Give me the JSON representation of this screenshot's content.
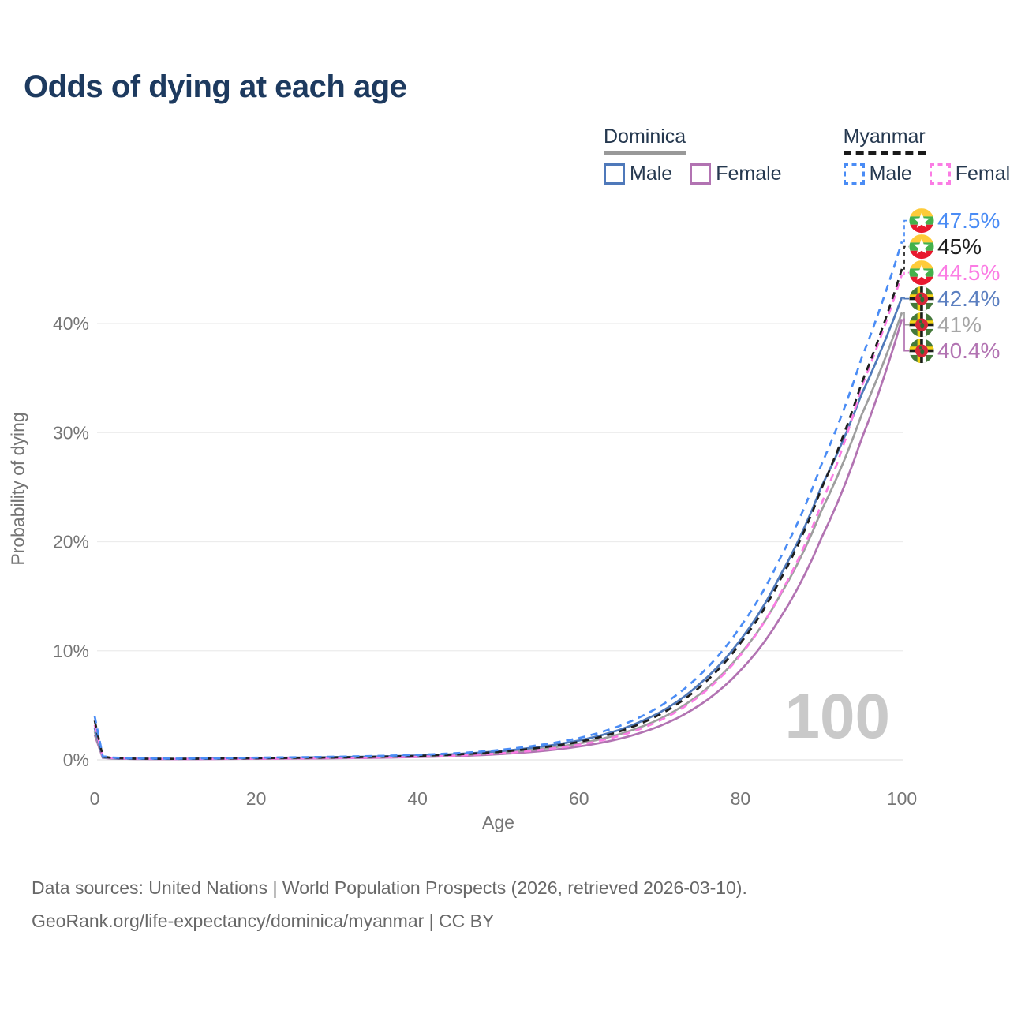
{
  "title": "Odds of dying at each age",
  "watermark": "100",
  "legend": {
    "groups": [
      {
        "country": "Dominica",
        "underline_color": "#999999",
        "underline_style": "solid",
        "items": [
          {
            "label": "Male",
            "color": "#4f79ba",
            "dash": false
          },
          {
            "label": "Female",
            "color": "#b273b2",
            "dash": false
          }
        ]
      },
      {
        "country": "Myanmar",
        "underline_color": "#1a1a1a",
        "underline_style": "dashed",
        "items": [
          {
            "label": "Male",
            "color": "#4a8cf5",
            "dash": true
          },
          {
            "label": "Female",
            "color": "#fb7ce4",
            "dash": true
          }
        ]
      }
    ]
  },
  "footer": {
    "line1": "Data sources: United Nations | World Population Prospects (2026, retrieved 2026-03-10).",
    "line2": "GeoRank.org/life-expectancy/dominica/myanmar | CC BY"
  },
  "chart_data": {
    "type": "line",
    "title": "Odds of dying at each age",
    "xlabel": "Age",
    "ylabel": "Probability of dying",
    "xlim": [
      0,
      100
    ],
    "ylim": [
      0,
      48
    ],
    "grid": "horizontal",
    "legend_position": "top-right",
    "xticks": [
      {
        "value": 0,
        "label": "0"
      },
      {
        "value": 20,
        "label": "20"
      },
      {
        "value": 40,
        "label": "40"
      },
      {
        "value": 60,
        "label": "60"
      },
      {
        "value": 80,
        "label": "80"
      },
      {
        "value": 100,
        "label": "100"
      }
    ],
    "yticks": [
      {
        "value": 0,
        "label": "0%"
      },
      {
        "value": 10,
        "label": "10%"
      },
      {
        "value": 20,
        "label": "20%"
      },
      {
        "value": 30,
        "label": "30%"
      },
      {
        "value": 40,
        "label": "40%"
      }
    ],
    "ages": [
      0,
      1,
      2,
      5,
      10,
      15,
      20,
      25,
      30,
      35,
      40,
      45,
      50,
      55,
      60,
      65,
      70,
      75,
      80,
      85,
      90,
      95,
      100
    ],
    "series": [
      {
        "name": "Dominica Female",
        "country": "Dominica",
        "sex": "Female",
        "color": "#b273b2",
        "label_color": "#b273b2",
        "dash": false,
        "end_label": "40.4%",
        "values": [
          2.3,
          0.19,
          0.12,
          0.08,
          0.07,
          0.08,
          0.1,
          0.12,
          0.15,
          0.19,
          0.26,
          0.35,
          0.52,
          0.79,
          1.22,
          1.93,
          3.1,
          5.05,
          8.2,
          13.1,
          20.3,
          29.4,
          40.4
        ]
      },
      {
        "name": "Dominica Total",
        "country": "Dominica",
        "sex": "Both",
        "color": "#9e9e9e",
        "label_color": "#a6a6a6",
        "dash": false,
        "end_label": "41%",
        "values": [
          2.6,
          0.22,
          0.14,
          0.09,
          0.08,
          0.1,
          0.13,
          0.16,
          0.2,
          0.25,
          0.33,
          0.44,
          0.65,
          0.98,
          1.5,
          2.35,
          3.75,
          6.05,
          9.7,
          15.2,
          22.8,
          31.6,
          41.0
        ]
      },
      {
        "name": "Dominica Male",
        "country": "Dominica",
        "sex": "Male",
        "color": "#4f79ba",
        "label_color": "#5b7fc0",
        "dash": false,
        "end_label": "42.4%",
        "values": [
          2.9,
          0.25,
          0.16,
          0.1,
          0.09,
          0.12,
          0.17,
          0.21,
          0.25,
          0.31,
          0.4,
          0.54,
          0.79,
          1.18,
          1.78,
          2.75,
          4.35,
          7.0,
          11.0,
          17.0,
          25.0,
          33.5,
          42.4
        ]
      },
      {
        "name": "Myanmar Female",
        "country": "Myanmar",
        "sex": "Female",
        "color": "#fb7ce4",
        "label_color": "#fb7ce4",
        "dash": true,
        "end_label": "44.5%",
        "values": [
          3.2,
          0.27,
          0.17,
          0.1,
          0.08,
          0.09,
          0.11,
          0.14,
          0.17,
          0.22,
          0.29,
          0.4,
          0.59,
          0.9,
          1.38,
          2.2,
          3.6,
          5.9,
          9.6,
          15.3,
          23.4,
          34.2,
          44.5
        ]
      },
      {
        "name": "Myanmar Total",
        "country": "Myanmar",
        "sex": "Both",
        "color": "#1f1f1f",
        "label_color": "#1f1f1f",
        "dash": true,
        "end_label": "45%",
        "values": [
          3.6,
          0.31,
          0.19,
          0.11,
          0.095,
          0.115,
          0.155,
          0.185,
          0.225,
          0.28,
          0.37,
          0.5,
          0.73,
          1.1,
          1.65,
          2.6,
          4.15,
          6.7,
          10.7,
          16.6,
          24.8,
          34.5,
          45.0
        ]
      },
      {
        "name": "Myanmar Male",
        "country": "Myanmar",
        "sex": "Male",
        "color": "#4a8cf5",
        "label_color": "#4a8cf5",
        "dash": true,
        "end_label": "47.5%",
        "values": [
          4.0,
          0.35,
          0.22,
          0.13,
          0.11,
          0.14,
          0.2,
          0.24,
          0.29,
          0.36,
          0.46,
          0.62,
          0.9,
          1.35,
          2.0,
          3.1,
          4.9,
          7.8,
          12.2,
          18.6,
          27.0,
          36.8,
          47.5
        ]
      }
    ]
  }
}
